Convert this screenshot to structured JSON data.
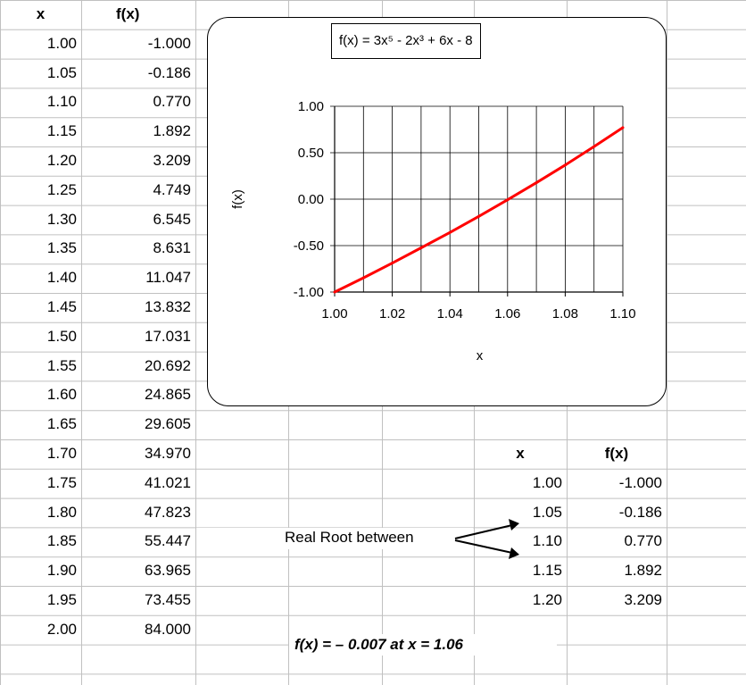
{
  "table_left": {
    "header_x": "x",
    "header_fx": "f(x)",
    "rows": [
      {
        "x": "1.00",
        "fx": "-1.000"
      },
      {
        "x": "1.05",
        "fx": "-0.186"
      },
      {
        "x": "1.10",
        "fx": "0.770"
      },
      {
        "x": "1.15",
        "fx": "1.892"
      },
      {
        "x": "1.20",
        "fx": "3.209"
      },
      {
        "x": "1.25",
        "fx": "4.749"
      },
      {
        "x": "1.30",
        "fx": "6.545"
      },
      {
        "x": "1.35",
        "fx": "8.631"
      },
      {
        "x": "1.40",
        "fx": "11.047"
      },
      {
        "x": "1.45",
        "fx": "13.832"
      },
      {
        "x": "1.50",
        "fx": "17.031"
      },
      {
        "x": "1.55",
        "fx": "20.692"
      },
      {
        "x": "1.60",
        "fx": "24.865"
      },
      {
        "x": "1.65",
        "fx": "29.605"
      },
      {
        "x": "1.70",
        "fx": "34.970"
      },
      {
        "x": "1.75",
        "fx": "41.021"
      },
      {
        "x": "1.80",
        "fx": "47.823"
      },
      {
        "x": "1.85",
        "fx": "55.447"
      },
      {
        "x": "1.90",
        "fx": "63.965"
      },
      {
        "x": "1.95",
        "fx": "73.455"
      },
      {
        "x": "2.00",
        "fx": "84.000"
      }
    ]
  },
  "table_right": {
    "header_x": "x",
    "header_fx": "f(x)",
    "rows": [
      {
        "x": "1.00",
        "fx": "-1.000"
      },
      {
        "x": "1.05",
        "fx": "-0.186"
      },
      {
        "x": "1.10",
        "fx": "0.770"
      },
      {
        "x": "1.15",
        "fx": "1.892"
      },
      {
        "x": "1.20",
        "fx": "3.209"
      }
    ]
  },
  "annotation": {
    "root_between": "Real Root between",
    "result": "f(x) = – 0.007 at x = 1.06"
  },
  "colors": {
    "line": "#ff0000",
    "grid": "#c0c0c0"
  },
  "chart_data": {
    "type": "line",
    "title": "f(x) = 3x⁵ - 2x³ + 6x - 8",
    "xlabel": "x",
    "ylabel": "f(x)",
    "xlim": [
      1.0,
      1.1
    ],
    "ylim": [
      -1.0,
      1.0
    ],
    "x_ticks": [
      "1.00",
      "1.02",
      "1.04",
      "1.06",
      "1.08",
      "1.10"
    ],
    "y_ticks": [
      "1.00",
      "0.50",
      "0.00",
      "-0.50",
      "-1.00"
    ],
    "grid": true,
    "legend": "none",
    "series": [
      {
        "x": [
          1.0,
          1.01,
          1.02,
          1.03,
          1.04,
          1.05,
          1.06,
          1.07,
          1.08,
          1.09,
          1.1
        ],
        "values": [
          -1.0,
          -0.847,
          -0.688,
          -0.524,
          -0.359,
          -0.186,
          -0.007,
          0.177,
          0.367,
          0.566,
          0.77
        ]
      }
    ]
  }
}
